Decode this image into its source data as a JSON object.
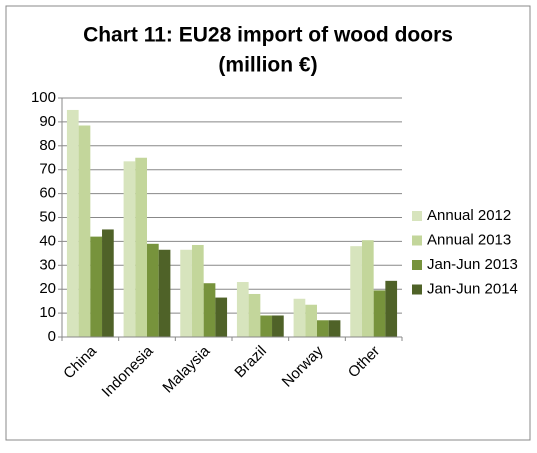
{
  "chart_data": {
    "type": "bar",
    "title_lines": [
      "Chart 11: EU28 import of wood doors",
      "(million €)"
    ],
    "categories": [
      "China",
      "Indonesia",
      "Malaysia",
      "Brazil",
      "Norway",
      "Other"
    ],
    "series": [
      {
        "name": "Annual 2012",
        "color": "#d7e4bd",
        "values": [
          95,
          73.5,
          36.5,
          23,
          16,
          38
        ]
      },
      {
        "name": "Annual 2013",
        "color": "#c3d69b",
        "values": [
          88.5,
          75,
          38.5,
          18,
          13.5,
          40.5
        ]
      },
      {
        "name": "Jan-Jun 2013",
        "color": "#77933c",
        "values": [
          42,
          39,
          22.5,
          9,
          7,
          19.5
        ]
      },
      {
        "name": "Jan-Jun 2014",
        "color": "#4f6228",
        "values": [
          45,
          36.5,
          16.5,
          9,
          7,
          23.5
        ]
      }
    ],
    "ylim": [
      0,
      100
    ],
    "yticks": [
      0,
      10,
      20,
      30,
      40,
      50,
      60,
      70,
      80,
      90,
      100
    ],
    "grid": true,
    "legend": "right"
  }
}
